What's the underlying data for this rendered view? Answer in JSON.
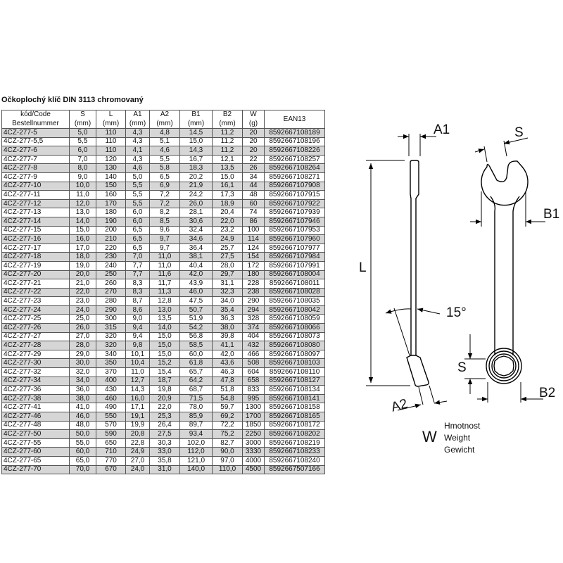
{
  "title": "Očkoplochý klíč DIN 3113 chromovaný",
  "table": {
    "headers": [
      [
        "kód/Code",
        "Bestellnummer"
      ],
      [
        "S",
        "(mm)"
      ],
      [
        "L",
        "(mm)"
      ],
      [
        "A1",
        "(mm)"
      ],
      [
        "A2",
        "(mm)"
      ],
      [
        "B1",
        "(mm)"
      ],
      [
        "B2",
        "(mm)"
      ],
      [
        "W",
        "(g)"
      ],
      [
        "EAN13",
        ""
      ]
    ],
    "rows": [
      [
        "4CZ-277-5",
        "5,0",
        "110",
        "4,3",
        "4,8",
        "14,5",
        "11,2",
        "20",
        "8592667108189"
      ],
      [
        "4CZ-277-5,5",
        "5,5",
        "110",
        "4,3",
        "5,1",
        "15,0",
        "11,2",
        "20",
        "8592667108196"
      ],
      [
        "4CZ-277-6",
        "6,0",
        "110",
        "4,1",
        "4,6",
        "14,3",
        "11,2",
        "20",
        "8592667108226"
      ],
      [
        "4CZ-277-7",
        "7,0",
        "120",
        "4,3",
        "5,5",
        "16,7",
        "12,1",
        "22",
        "8592667108257"
      ],
      [
        "4CZ-277-8",
        "8,0",
        "130",
        "4,6",
        "5,8",
        "18,3",
        "13,5",
        "26",
        "8592667108264"
      ],
      [
        "4CZ-277-9",
        "9,0",
        "140",
        "5,0",
        "6,5",
        "20,2",
        "15,0",
        "34",
        "8592667108271"
      ],
      [
        "4CZ-277-10",
        "10,0",
        "150",
        "5,5",
        "6,9",
        "21,9",
        "16,1",
        "44",
        "8592667107908"
      ],
      [
        "4CZ-277-11",
        "11,0",
        "160",
        "5,5",
        "7,2",
        "24,2",
        "17,3",
        "48",
        "8592667107915"
      ],
      [
        "4CZ-277-12",
        "12,0",
        "170",
        "5,5",
        "7,2",
        "26,0",
        "18,9",
        "60",
        "8592667107922"
      ],
      [
        "4CZ-277-13",
        "13,0",
        "180",
        "6,0",
        "8,2",
        "28,1",
        "20,4",
        "74",
        "8592667107939"
      ],
      [
        "4CZ-277-14",
        "14,0",
        "190",
        "6,0",
        "8,5",
        "30,6",
        "22,0",
        "86",
        "8592667107946"
      ],
      [
        "4CZ-277-15",
        "15,0",
        "200",
        "6,5",
        "9,6",
        "32,4",
        "23,2",
        "100",
        "8592667107953"
      ],
      [
        "4CZ-277-16",
        "16,0",
        "210",
        "6,5",
        "9,7",
        "34,6",
        "24,9",
        "114",
        "8592667107960"
      ],
      [
        "4CZ-277-17",
        "17,0",
        "220",
        "6,5",
        "9,7",
        "36,4",
        "25,7",
        "124",
        "8592667107977"
      ],
      [
        "4CZ-277-18",
        "18,0",
        "230",
        "7,0",
        "11,0",
        "38,1",
        "27,5",
        "154",
        "8592667107984"
      ],
      [
        "4CZ-277-19",
        "19,0",
        "240",
        "7,7",
        "11,0",
        "40,4",
        "28,0",
        "172",
        "8592667107991"
      ],
      [
        "4CZ-277-20",
        "20,0",
        "250",
        "7,7",
        "11,6",
        "42,0",
        "29,7",
        "180",
        "8592667108004"
      ],
      [
        "4CZ-277-21",
        "21,0",
        "260",
        "8,3",
        "11,7",
        "43,9",
        "31,1",
        "228",
        "8592667108011"
      ],
      [
        "4CZ-277-22",
        "22,0",
        "270",
        "8,3",
        "11,3",
        "46,0",
        "32,3",
        "238",
        "8592667108028"
      ],
      [
        "4CZ-277-23",
        "23,0",
        "280",
        "8,7",
        "12,8",
        "47,5",
        "34,0",
        "290",
        "8592667108035"
      ],
      [
        "4CZ-277-24",
        "24,0",
        "290",
        "8,6",
        "13,0",
        "50,7",
        "35,4",
        "294",
        "8592667108042"
      ],
      [
        "4CZ-277-25",
        "25,0",
        "300",
        "9,0",
        "13,5",
        "51,9",
        "36,3",
        "328",
        "8592667108059"
      ],
      [
        "4CZ-277-26",
        "26,0",
        "315",
        "9,4",
        "14,0",
        "54,2",
        "38,0",
        "374",
        "8592667108066"
      ],
      [
        "4CZ-277-27",
        "27,0",
        "320",
        "9,4",
        "15,0",
        "56,8",
        "39,8",
        "404",
        "8592667108073"
      ],
      [
        "4CZ-277-28",
        "28,0",
        "320",
        "9,8",
        "15,0",
        "58,5",
        "41,1",
        "432",
        "8592667108080"
      ],
      [
        "4CZ-277-29",
        "29,0",
        "340",
        "10,1",
        "15,0",
        "60,0",
        "42,0",
        "466",
        "8592667108097"
      ],
      [
        "4CZ-277-30",
        "30,0",
        "350",
        "10,4",
        "15,2",
        "61,8",
        "43,6",
        "508",
        "8592667108103"
      ],
      [
        "4CZ-277-32",
        "32,0",
        "370",
        "11,0",
        "15,4",
        "65,7",
        "46,3",
        "604",
        "8592667108110"
      ],
      [
        "4CZ-277-34",
        "34,0",
        "400",
        "12,7",
        "18,7",
        "64,2",
        "47,8",
        "658",
        "8592667108127"
      ],
      [
        "4CZ-277-36",
        "36,0",
        "430",
        "14,3",
        "19,8",
        "68,7",
        "51,8",
        "833",
        "8592667108134"
      ],
      [
        "4CZ-277-38",
        "38,0",
        "460",
        "16,0",
        "20,9",
        "71,5",
        "54,8",
        "995",
        "8592667108141"
      ],
      [
        "4CZ-277-41",
        "41,0",
        "490",
        "17,1",
        "22,0",
        "78,0",
        "59,7",
        "1300",
        "8592667108158"
      ],
      [
        "4CZ-277-46",
        "46,0",
        "550",
        "19,1",
        "25,3",
        "85,9",
        "69,2",
        "1700",
        "8592667108165"
      ],
      [
        "4CZ-277-48",
        "48,0",
        "570",
        "19,9",
        "26,4",
        "89,7",
        "72,2",
        "1850",
        "8592667108172"
      ],
      [
        "4CZ-277-50",
        "50,0",
        "590",
        "20,8",
        "27,5",
        "93,4",
        "75,2",
        "2250",
        "8592667108202"
      ],
      [
        "4CZ-277-55",
        "55,0",
        "650",
        "22,8",
        "30,3",
        "102,0",
        "82,7",
        "3000",
        "8592667108219"
      ],
      [
        "4CZ-277-60",
        "60,0",
        "710",
        "24,9",
        "33,0",
        "112,0",
        "90,0",
        "3330",
        "8592667108233"
      ],
      [
        "4CZ-277-65",
        "65,0",
        "770",
        "27,0",
        "35,8",
        "121,0",
        "97,0",
        "4000",
        "8592667108240"
      ],
      [
        "4CZ-277-70",
        "70,0",
        "670",
        "24,0",
        "31,0",
        "140,0",
        "110,0",
        "4500",
        "8592667507166"
      ]
    ],
    "row_shade_color": "#d6d6d6"
  },
  "diagram": {
    "labels": {
      "A1": "A1",
      "S_top": "S",
      "B1": "B1",
      "L": "L",
      "angle": "15°",
      "S_bottom": "S",
      "B2": "B2",
      "A2": "A2",
      "W": "W"
    },
    "weight_legend": [
      "Hmotnost",
      "Weight",
      "Gewicht"
    ]
  }
}
